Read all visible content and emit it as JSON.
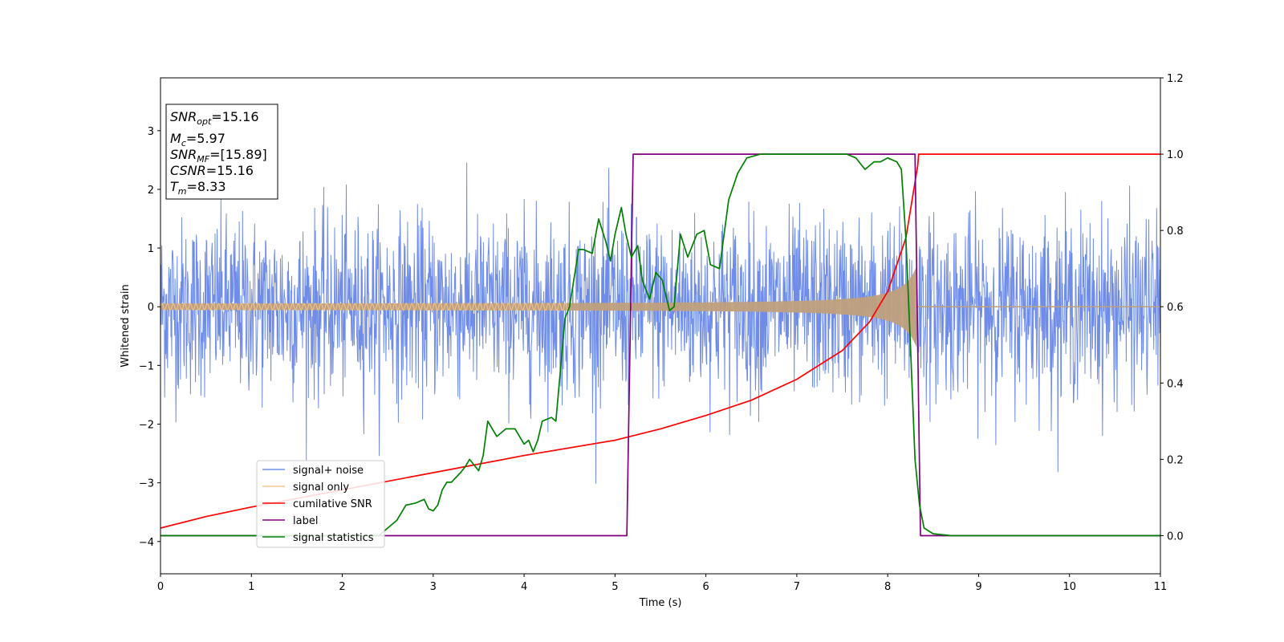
{
  "chart_data": {
    "type": "line",
    "xlabel": "Time (s)",
    "ylabel": "Whitened strain",
    "xlim": [
      0,
      11
    ],
    "ylim": [
      -4.55,
      3.9
    ],
    "y2lim": [
      -0.1,
      1.2
    ],
    "x_ticks": [
      "0",
      "1",
      "2",
      "3",
      "4",
      "5",
      "6",
      "7",
      "8",
      "9",
      "10",
      "11"
    ],
    "y_ticks": [
      "−4",
      "−3",
      "−2",
      "−1",
      "0",
      "1",
      "2",
      "3"
    ],
    "y2_ticks": [
      "0.0",
      "0.2",
      "0.4",
      "0.6",
      "0.8",
      "1.0",
      "1.2"
    ],
    "colors": {
      "signal_noise": "#6f8de8",
      "signal_only": "#f5c68c",
      "signal_only_overlap": "#c0a07c",
      "cumulative_snr": "#ff0000",
      "label": "#800080",
      "signal_statistics": "#008000"
    },
    "annotation": [
      {
        "name": "SNR",
        "sub": "opt",
        "value": "=15.16"
      },
      {
        "name": "M",
        "sub": "c",
        "value": "=5.97"
      },
      {
        "name": "SNR",
        "sub": "MF",
        "value": "=[15.89]"
      },
      {
        "name": "CSNR",
        "sub": "",
        "value": "=15.16"
      },
      {
        "name": "T",
        "sub": "m",
        "value": "=8.33"
      }
    ],
    "legend_position": "lower-left",
    "series": [
      {
        "name": "signal+ noise",
        "axis": "left",
        "description_values": {
          "x_range": [
            0,
            11
          ],
          "std": 0.75
        }
      },
      {
        "name": "signal only",
        "axis": "left",
        "chirp_end": 8.33,
        "peak_amplitude": 0.75
      },
      {
        "name": "cumilative SNR",
        "axis": "right",
        "x": [
          0,
          0.5,
          1,
          2,
          3,
          4,
          5,
          5.5,
          6,
          6.5,
          7,
          7.5,
          7.8,
          8.0,
          8.2,
          8.33,
          8.34,
          11
        ],
        "values": [
          0.02,
          0.05,
          0.075,
          0.12,
          0.165,
          0.21,
          0.25,
          0.28,
          0.315,
          0.355,
          0.41,
          0.485,
          0.56,
          0.64,
          0.78,
          0.97,
          1.0,
          1.0
        ]
      },
      {
        "name": "label",
        "axis": "right",
        "x": [
          0,
          5.13,
          5.2,
          8.3,
          8.36,
          11
        ],
        "values": [
          0,
          0,
          1,
          1,
          0,
          0
        ]
      },
      {
        "name": "signal statistics",
        "axis": "right",
        "x": [
          0,
          2.4,
          2.6,
          2.7,
          2.8,
          2.9,
          2.95,
          3.0,
          3.05,
          3.1,
          3.15,
          3.2,
          3.3,
          3.35,
          3.4,
          3.5,
          3.55,
          3.6,
          3.7,
          3.8,
          3.9,
          4.0,
          4.05,
          4.1,
          4.15,
          4.2,
          4.3,
          4.35,
          4.45,
          4.5,
          4.6,
          4.65,
          4.75,
          4.82,
          4.9,
          4.95,
          5.0,
          5.07,
          5.12,
          5.18,
          5.25,
          5.3,
          5.38,
          5.45,
          5.52,
          5.6,
          5.65,
          5.72,
          5.8,
          5.9,
          5.98,
          6.05,
          6.15,
          6.25,
          6.35,
          6.45,
          6.6,
          6.8,
          7.0,
          7.2,
          7.4,
          7.55,
          7.65,
          7.75,
          7.85,
          7.92,
          8.0,
          8.1,
          8.15,
          8.2,
          8.25,
          8.3,
          8.35,
          8.4,
          8.5,
          8.7,
          11
        ],
        "values": [
          0.0,
          0.0,
          0.04,
          0.08,
          0.085,
          0.095,
          0.07,
          0.065,
          0.08,
          0.12,
          0.14,
          0.14,
          0.165,
          0.18,
          0.2,
          0.17,
          0.21,
          0.3,
          0.26,
          0.28,
          0.28,
          0.24,
          0.25,
          0.22,
          0.25,
          0.3,
          0.31,
          0.3,
          0.57,
          0.6,
          0.75,
          0.75,
          0.74,
          0.83,
          0.77,
          0.72,
          0.79,
          0.86,
          0.79,
          0.73,
          0.76,
          0.67,
          0.62,
          0.69,
          0.67,
          0.59,
          0.6,
          0.79,
          0.73,
          0.79,
          0.8,
          0.71,
          0.7,
          0.88,
          0.95,
          0.99,
          1.0,
          1.0,
          1.0,
          1.0,
          1.0,
          1.0,
          0.99,
          0.96,
          0.98,
          0.98,
          0.99,
          0.98,
          0.96,
          0.78,
          0.5,
          0.2,
          0.08,
          0.02,
          0.005,
          0.0,
          0.0
        ]
      }
    ]
  }
}
